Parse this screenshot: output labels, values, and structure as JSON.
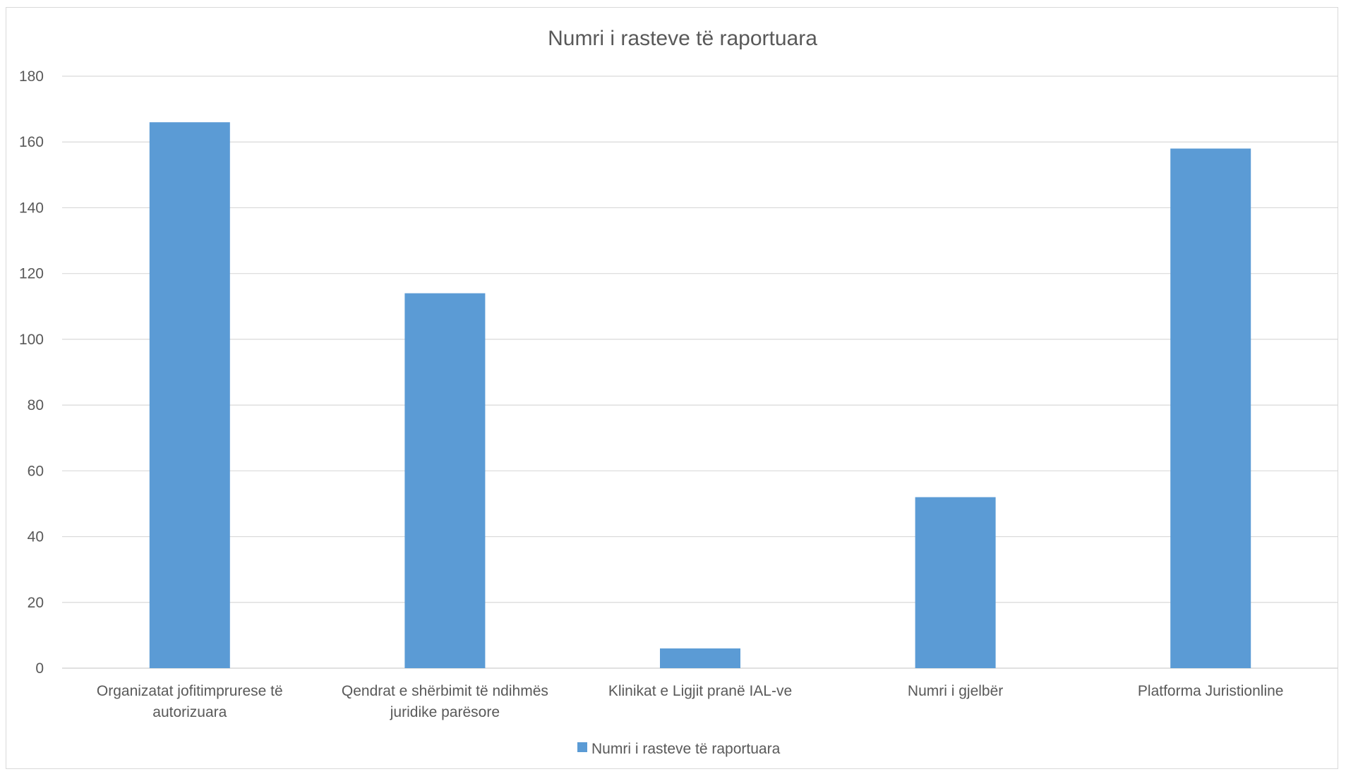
{
  "chart_data": {
    "type": "bar",
    "title": "Numri i rasteve të raportuara",
    "categories": [
      [
        "Organizatat jofitimprurese të",
        "autorizuara"
      ],
      [
        "Qendrat e shërbimit të ndihmës",
        "juridike parësore"
      ],
      [
        "Klinikat e Ligjit pranë IAL-ve"
      ],
      [
        "Numri i gjelbër"
      ],
      [
        "Platforma Juristionline"
      ]
    ],
    "series": [
      {
        "name": "Numri i rasteve të raportuara",
        "values": [
          166,
          114,
          6,
          52,
          158
        ],
        "color": "#5b9bd5"
      }
    ],
    "ylim": [
      0,
      180
    ],
    "yticks": [
      0,
      20,
      40,
      60,
      80,
      100,
      120,
      140,
      160,
      180
    ],
    "grid": true,
    "legend_position": "bottom"
  }
}
